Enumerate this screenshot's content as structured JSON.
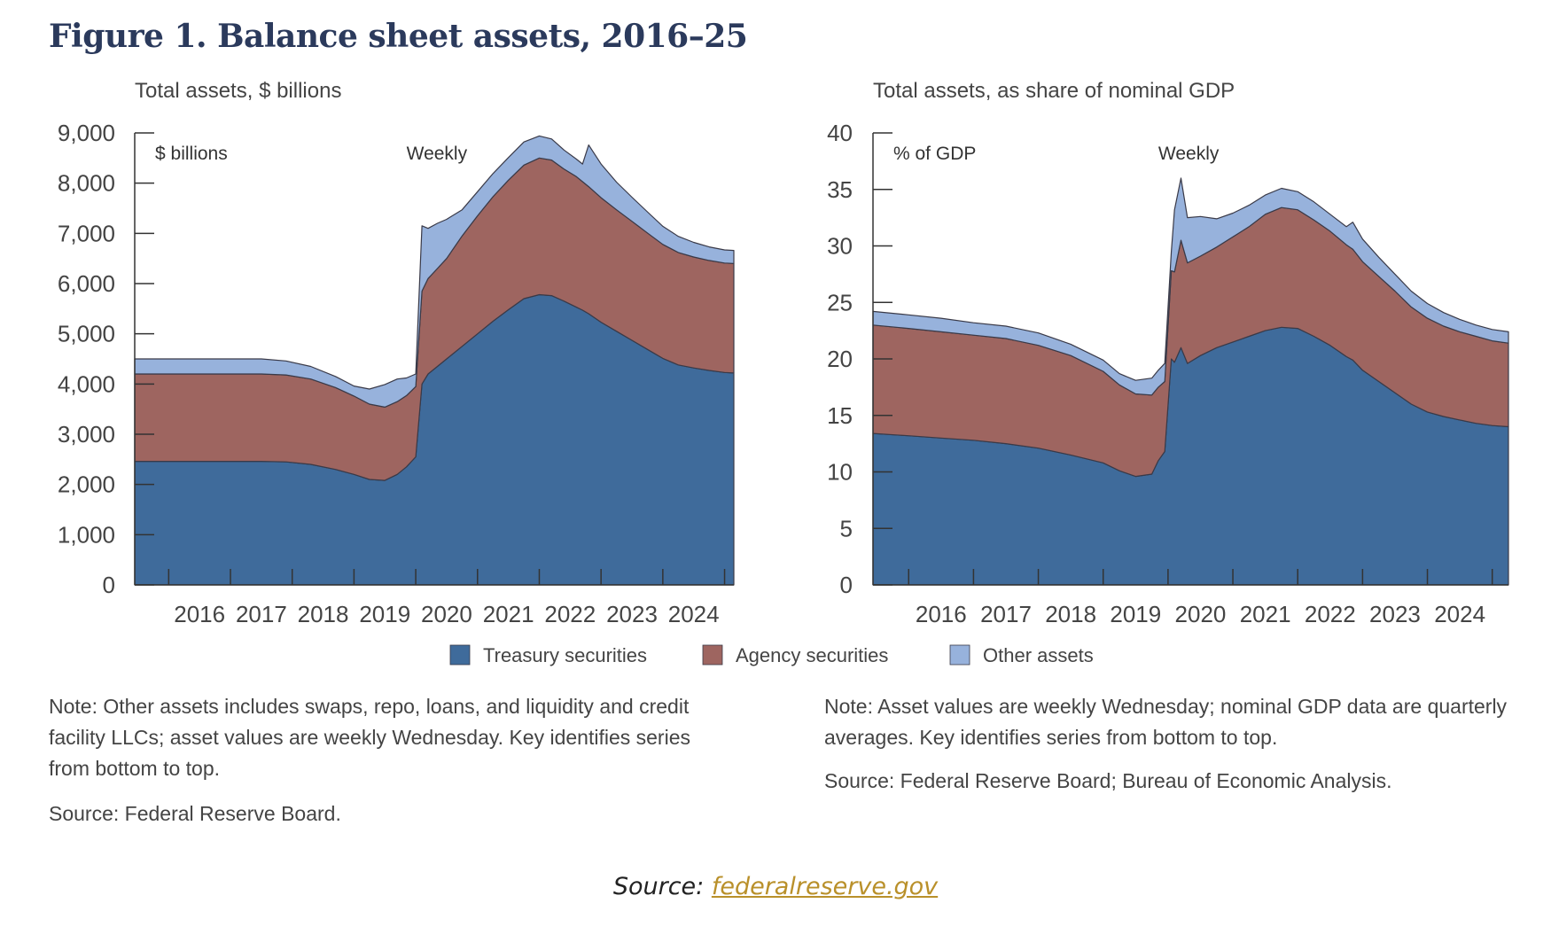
{
  "figure_title": "Figure 1. Balance sheet assets, 2016–25",
  "colors": {
    "treasury": "#3f6b9b",
    "agency": "#9e6560",
    "other": "#97b2dc",
    "text": "#444444",
    "title": "#2b3a5c",
    "link": "#b9902a"
  },
  "legend": [
    {
      "label": "Treasury securities",
      "color": "#3f6b9b"
    },
    {
      "label": "Agency securities",
      "color": "#9e6560"
    },
    {
      "label": "Other assets",
      "color": "#97b2dc"
    }
  ],
  "notes": {
    "left": "Note: Other assets includes swaps, repo, loans, and liquidity and credit facility LLCs; asset values are weekly Wednesday. Key identifies series from bottom to top.",
    "left_source": "Source: Federal Reserve Board.",
    "right": "Note: Asset values are weekly Wednesday; nominal GDP data are quarterly averages. Key identifies series from bottom to top.",
    "right_source": "Source: Federal Reserve Board; Bureau of Economic Analysis."
  },
  "page_source": {
    "prefix": "Source: ",
    "link_text": "federalreserve.gov"
  },
  "chart_data": [
    {
      "type": "area",
      "stacked": true,
      "title": "Total assets, $ billions",
      "unit_label": "$ billions",
      "frequency_label": "Weekly",
      "xlabel": "",
      "ylabel": "",
      "xlim": [
        2015.45,
        2025.15
      ],
      "ylim": [
        0,
        9000
      ],
      "yticks": [
        0,
        1000,
        2000,
        3000,
        4000,
        5000,
        6000,
        7000,
        8000,
        9000
      ],
      "ytick_labels": [
        "0",
        "1,000",
        "2,000",
        "3,000",
        "4,000",
        "5,000",
        "6,000",
        "7,000",
        "8,000",
        "9,000"
      ],
      "xtick_labels": [
        "2016",
        "2017",
        "2018",
        "2019",
        "2020",
        "2021",
        "2022",
        "2023",
        "2024"
      ],
      "grid": false,
      "legend_position": "bottom",
      "x": [
        2015.45,
        2016.0,
        2016.5,
        2017.0,
        2017.5,
        2017.9,
        2018.3,
        2018.7,
        2019.0,
        2019.25,
        2019.5,
        2019.7,
        2019.85,
        2020.0,
        2020.1,
        2020.2,
        2020.35,
        2020.5,
        2020.75,
        2021.0,
        2021.25,
        2021.5,
        2021.75,
        2022.0,
        2022.2,
        2022.4,
        2022.6,
        2022.7,
        2022.8,
        2023.0,
        2023.25,
        2023.5,
        2023.75,
        2024.0,
        2024.25,
        2024.5,
        2024.75,
        2025.0,
        2025.15
      ],
      "series": [
        {
          "name": "Treasury securities",
          "values": [
            2460,
            2460,
            2460,
            2460,
            2460,
            2450,
            2400,
            2300,
            2200,
            2100,
            2080,
            2200,
            2350,
            2550,
            4000,
            4200,
            4350,
            4500,
            4750,
            5000,
            5250,
            5480,
            5700,
            5780,
            5760,
            5650,
            5530,
            5470,
            5400,
            5230,
            5050,
            4870,
            4690,
            4510,
            4380,
            4320,
            4270,
            4230,
            4220
          ]
        },
        {
          "name": "Agency securities",
          "values": [
            1740,
            1740,
            1740,
            1740,
            1740,
            1730,
            1700,
            1630,
            1560,
            1500,
            1460,
            1450,
            1420,
            1400,
            1850,
            1900,
            1950,
            2000,
            2200,
            2350,
            2480,
            2580,
            2660,
            2720,
            2700,
            2630,
            2600,
            2560,
            2530,
            2480,
            2420,
            2370,
            2320,
            2270,
            2240,
            2210,
            2190,
            2180,
            2180
          ]
        },
        {
          "name": "Other assets",
          "values": [
            300,
            300,
            300,
            300,
            300,
            280,
            250,
            220,
            200,
            300,
            450,
            450,
            350,
            250,
            1300,
            1000,
            900,
            780,
            520,
            480,
            460,
            450,
            460,
            440,
            420,
            380,
            350,
            350,
            830,
            670,
            550,
            480,
            420,
            360,
            320,
            290,
            270,
            260,
            260
          ]
        }
      ]
    },
    {
      "type": "area",
      "stacked": true,
      "title": "Total assets, as share of nominal GDP",
      "unit_label": "% of GDP",
      "frequency_label": "Weekly",
      "xlabel": "",
      "ylabel": "",
      "xlim": [
        2015.45,
        2025.25
      ],
      "ylim": [
        0,
        40
      ],
      "yticks": [
        0,
        5,
        10,
        15,
        20,
        25,
        30,
        35,
        40
      ],
      "ytick_labels": [
        "0",
        "5",
        "10",
        "15",
        "20",
        "25",
        "30",
        "35",
        "40"
      ],
      "xtick_labels": [
        "2016",
        "2017",
        "2018",
        "2019",
        "2020",
        "2021",
        "2022",
        "2023",
        "2024"
      ],
      "grid": false,
      "legend_position": "bottom",
      "x": [
        2015.45,
        2016.0,
        2016.5,
        2017.0,
        2017.5,
        2018.0,
        2018.5,
        2019.0,
        2019.25,
        2019.5,
        2019.75,
        2019.85,
        2019.95,
        2020.05,
        2020.1,
        2020.2,
        2020.3,
        2020.5,
        2020.75,
        2021.0,
        2021.25,
        2021.5,
        2021.75,
        2022.0,
        2022.25,
        2022.5,
        2022.75,
        2022.85,
        2023.0,
        2023.25,
        2023.5,
        2023.75,
        2024.0,
        2024.25,
        2024.5,
        2024.75,
        2025.0,
        2025.25
      ],
      "series": [
        {
          "name": "Treasury securities",
          "values": [
            13.4,
            13.2,
            13.0,
            12.8,
            12.5,
            12.1,
            11.5,
            10.8,
            10.1,
            9.6,
            9.8,
            11.0,
            11.8,
            20.0,
            19.7,
            21.0,
            19.6,
            20.3,
            21.0,
            21.5,
            22.0,
            22.5,
            22.8,
            22.7,
            22.0,
            21.2,
            20.2,
            19.9,
            19.0,
            18.0,
            17.0,
            16.0,
            15.3,
            14.9,
            14.6,
            14.3,
            14.1,
            14.0
          ]
        },
        {
          "name": "Agency securities",
          "values": [
            9.6,
            9.5,
            9.4,
            9.3,
            9.3,
            9.1,
            8.8,
            8.1,
            7.6,
            7.3,
            7.0,
            6.5,
            6.2,
            7.8,
            8.0,
            9.5,
            8.9,
            8.8,
            8.9,
            9.3,
            9.7,
            10.3,
            10.6,
            10.5,
            10.3,
            10.1,
            9.9,
            9.8,
            9.6,
            9.3,
            9.0,
            8.6,
            8.3,
            8.0,
            7.8,
            7.7,
            7.5,
            7.4
          ]
        },
        {
          "name": "Other assets",
          "values": [
            1.2,
            1.2,
            1.2,
            1.1,
            1.1,
            1.1,
            1.0,
            1.0,
            1.0,
            1.2,
            1.5,
            1.5,
            1.6,
            1.7,
            5.5,
            5.5,
            4.0,
            3.5,
            2.5,
            2.1,
            1.9,
            1.7,
            1.7,
            1.6,
            1.6,
            1.5,
            1.6,
            2.4,
            2.0,
            1.7,
            1.5,
            1.4,
            1.3,
            1.2,
            1.1,
            1.0,
            1.0,
            1.0
          ]
        }
      ]
    }
  ]
}
